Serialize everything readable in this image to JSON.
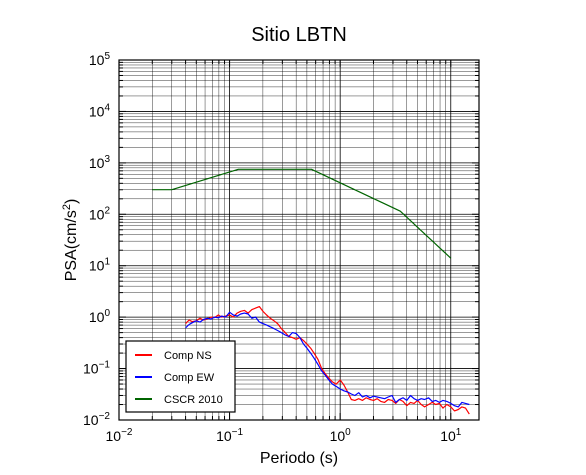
{
  "chart_data": {
    "type": "line",
    "title": "Sitio LBTN",
    "xlabel": "Periodo (s)",
    "ylabel_base": "PSA(cm/s",
    "ylabel_sup": "2",
    "ylabel_close": ")",
    "x_scale": "log",
    "y_scale": "log",
    "xlim": [
      0.01,
      18
    ],
    "ylim": [
      0.01,
      100000
    ],
    "grid": true,
    "legend_position": "bottom-left",
    "x_ticks": [
      {
        "value": 0.01,
        "base": "10",
        "exp": "−2"
      },
      {
        "value": 0.1,
        "base": "10",
        "exp": "−1"
      },
      {
        "value": 1,
        "base": "10",
        "exp": "0"
      },
      {
        "value": 10,
        "base": "10",
        "exp": "1"
      }
    ],
    "y_ticks": [
      {
        "value": 0.01,
        "base": "10",
        "exp": "−2"
      },
      {
        "value": 0.1,
        "base": "10",
        "exp": "−1"
      },
      {
        "value": 1,
        "base": "10",
        "exp": "0"
      },
      {
        "value": 10,
        "base": "10",
        "exp": "1"
      },
      {
        "value": 100,
        "base": "10",
        "exp": "2"
      },
      {
        "value": 1000,
        "base": "10",
        "exp": "3"
      },
      {
        "value": 10000,
        "base": "10",
        "exp": "4"
      },
      {
        "value": 100000,
        "base": "10",
        "exp": "5"
      }
    ],
    "series": [
      {
        "name": "Comp NS",
        "color": "#ff0000",
        "x": [
          0.04,
          0.043,
          0.046,
          0.05,
          0.054,
          0.058,
          0.063,
          0.068,
          0.073,
          0.079,
          0.085,
          0.092,
          0.1,
          0.108,
          0.117,
          0.126,
          0.136,
          0.147,
          0.159,
          0.172,
          0.186,
          0.2,
          0.216,
          0.233,
          0.252,
          0.272,
          0.294,
          0.318,
          0.343,
          0.37,
          0.4,
          0.432,
          0.466,
          0.5,
          0.54,
          0.58,
          0.63,
          0.68,
          0.73,
          0.79,
          0.85,
          0.92,
          1.0,
          1.08,
          1.17,
          1.26,
          1.36,
          1.47,
          1.59,
          1.72,
          1.86,
          2.0,
          2.16,
          2.33,
          2.52,
          2.72,
          2.94,
          3.18,
          3.43,
          3.7,
          4.0,
          4.32,
          4.66,
          5.0,
          5.4,
          5.8,
          6.3,
          6.8,
          7.3,
          7.9,
          8.5,
          9.2,
          10.0,
          10.8,
          11.7,
          12.6,
          13.6,
          14.7
        ],
        "values": [
          0.75,
          0.88,
          0.82,
          0.85,
          0.95,
          0.88,
          0.92,
          1.0,
          0.98,
          1.1,
          1.0,
          1.05,
          1.1,
          1.0,
          1.2,
          1.3,
          1.35,
          1.2,
          1.4,
          1.5,
          1.6,
          1.3,
          1.1,
          0.95,
          0.85,
          0.75,
          0.6,
          0.5,
          0.42,
          0.4,
          0.37,
          0.4,
          0.35,
          0.3,
          0.25,
          0.2,
          0.15,
          0.1,
          0.08,
          0.065,
          0.055,
          0.05,
          0.06,
          0.048,
          0.035,
          0.025,
          0.024,
          0.026,
          0.024,
          0.027,
          0.025,
          0.024,
          0.026,
          0.023,
          0.022,
          0.025,
          0.024,
          0.021,
          0.025,
          0.023,
          0.019,
          0.022,
          0.021,
          0.024,
          0.02,
          0.018,
          0.02,
          0.022,
          0.02,
          0.021,
          0.017,
          0.02,
          0.018,
          0.015,
          0.016,
          0.018,
          0.017,
          0.013
        ]
      },
      {
        "name": "Comp EW",
        "color": "#0000ff",
        "x": [
          0.04,
          0.043,
          0.046,
          0.05,
          0.054,
          0.058,
          0.063,
          0.068,
          0.073,
          0.079,
          0.085,
          0.092,
          0.1,
          0.108,
          0.117,
          0.126,
          0.136,
          0.147,
          0.159,
          0.172,
          0.186,
          0.2,
          0.216,
          0.233,
          0.252,
          0.272,
          0.294,
          0.318,
          0.343,
          0.37,
          0.4,
          0.432,
          0.466,
          0.5,
          0.54,
          0.58,
          0.63,
          0.68,
          0.73,
          0.79,
          0.85,
          0.92,
          1.0,
          1.08,
          1.17,
          1.26,
          1.36,
          1.47,
          1.59,
          1.72,
          1.86,
          2.0,
          2.16,
          2.33,
          2.52,
          2.72,
          2.94,
          3.18,
          3.43,
          3.7,
          4.0,
          4.32,
          4.66,
          5.0,
          5.4,
          5.8,
          6.3,
          6.8,
          7.3,
          7.9,
          8.5,
          9.2,
          10.0,
          10.8,
          11.7,
          12.6,
          13.6,
          14.7
        ],
        "values": [
          0.62,
          0.72,
          0.78,
          0.85,
          0.8,
          0.9,
          0.95,
          0.92,
          1.0,
          0.97,
          1.05,
          1.0,
          1.25,
          1.1,
          1.05,
          1.15,
          1.2,
          1.15,
          0.95,
          1.0,
          0.8,
          0.75,
          0.7,
          0.65,
          0.6,
          0.55,
          0.5,
          0.45,
          0.42,
          0.5,
          0.48,
          0.4,
          0.3,
          0.25,
          0.2,
          0.16,
          0.12,
          0.09,
          0.075,
          0.06,
          0.05,
          0.045,
          0.04,
          0.037,
          0.035,
          0.032,
          0.03,
          0.034,
          0.028,
          0.03,
          0.027,
          0.029,
          0.028,
          0.027,
          0.026,
          0.028,
          0.03,
          0.022,
          0.025,
          0.027,
          0.024,
          0.03,
          0.026,
          0.024,
          0.026,
          0.025,
          0.027,
          0.023,
          0.024,
          0.022,
          0.024,
          0.023,
          0.021,
          0.019,
          0.018,
          0.022,
          0.021,
          0.02
        ]
      },
      {
        "name": "CSCR 2010",
        "color": "#006400",
        "x": [
          0.02,
          0.03,
          0.12,
          0.55,
          3.5,
          10.0
        ],
        "values": [
          300,
          300,
          750,
          750,
          115,
          14
        ]
      }
    ]
  }
}
